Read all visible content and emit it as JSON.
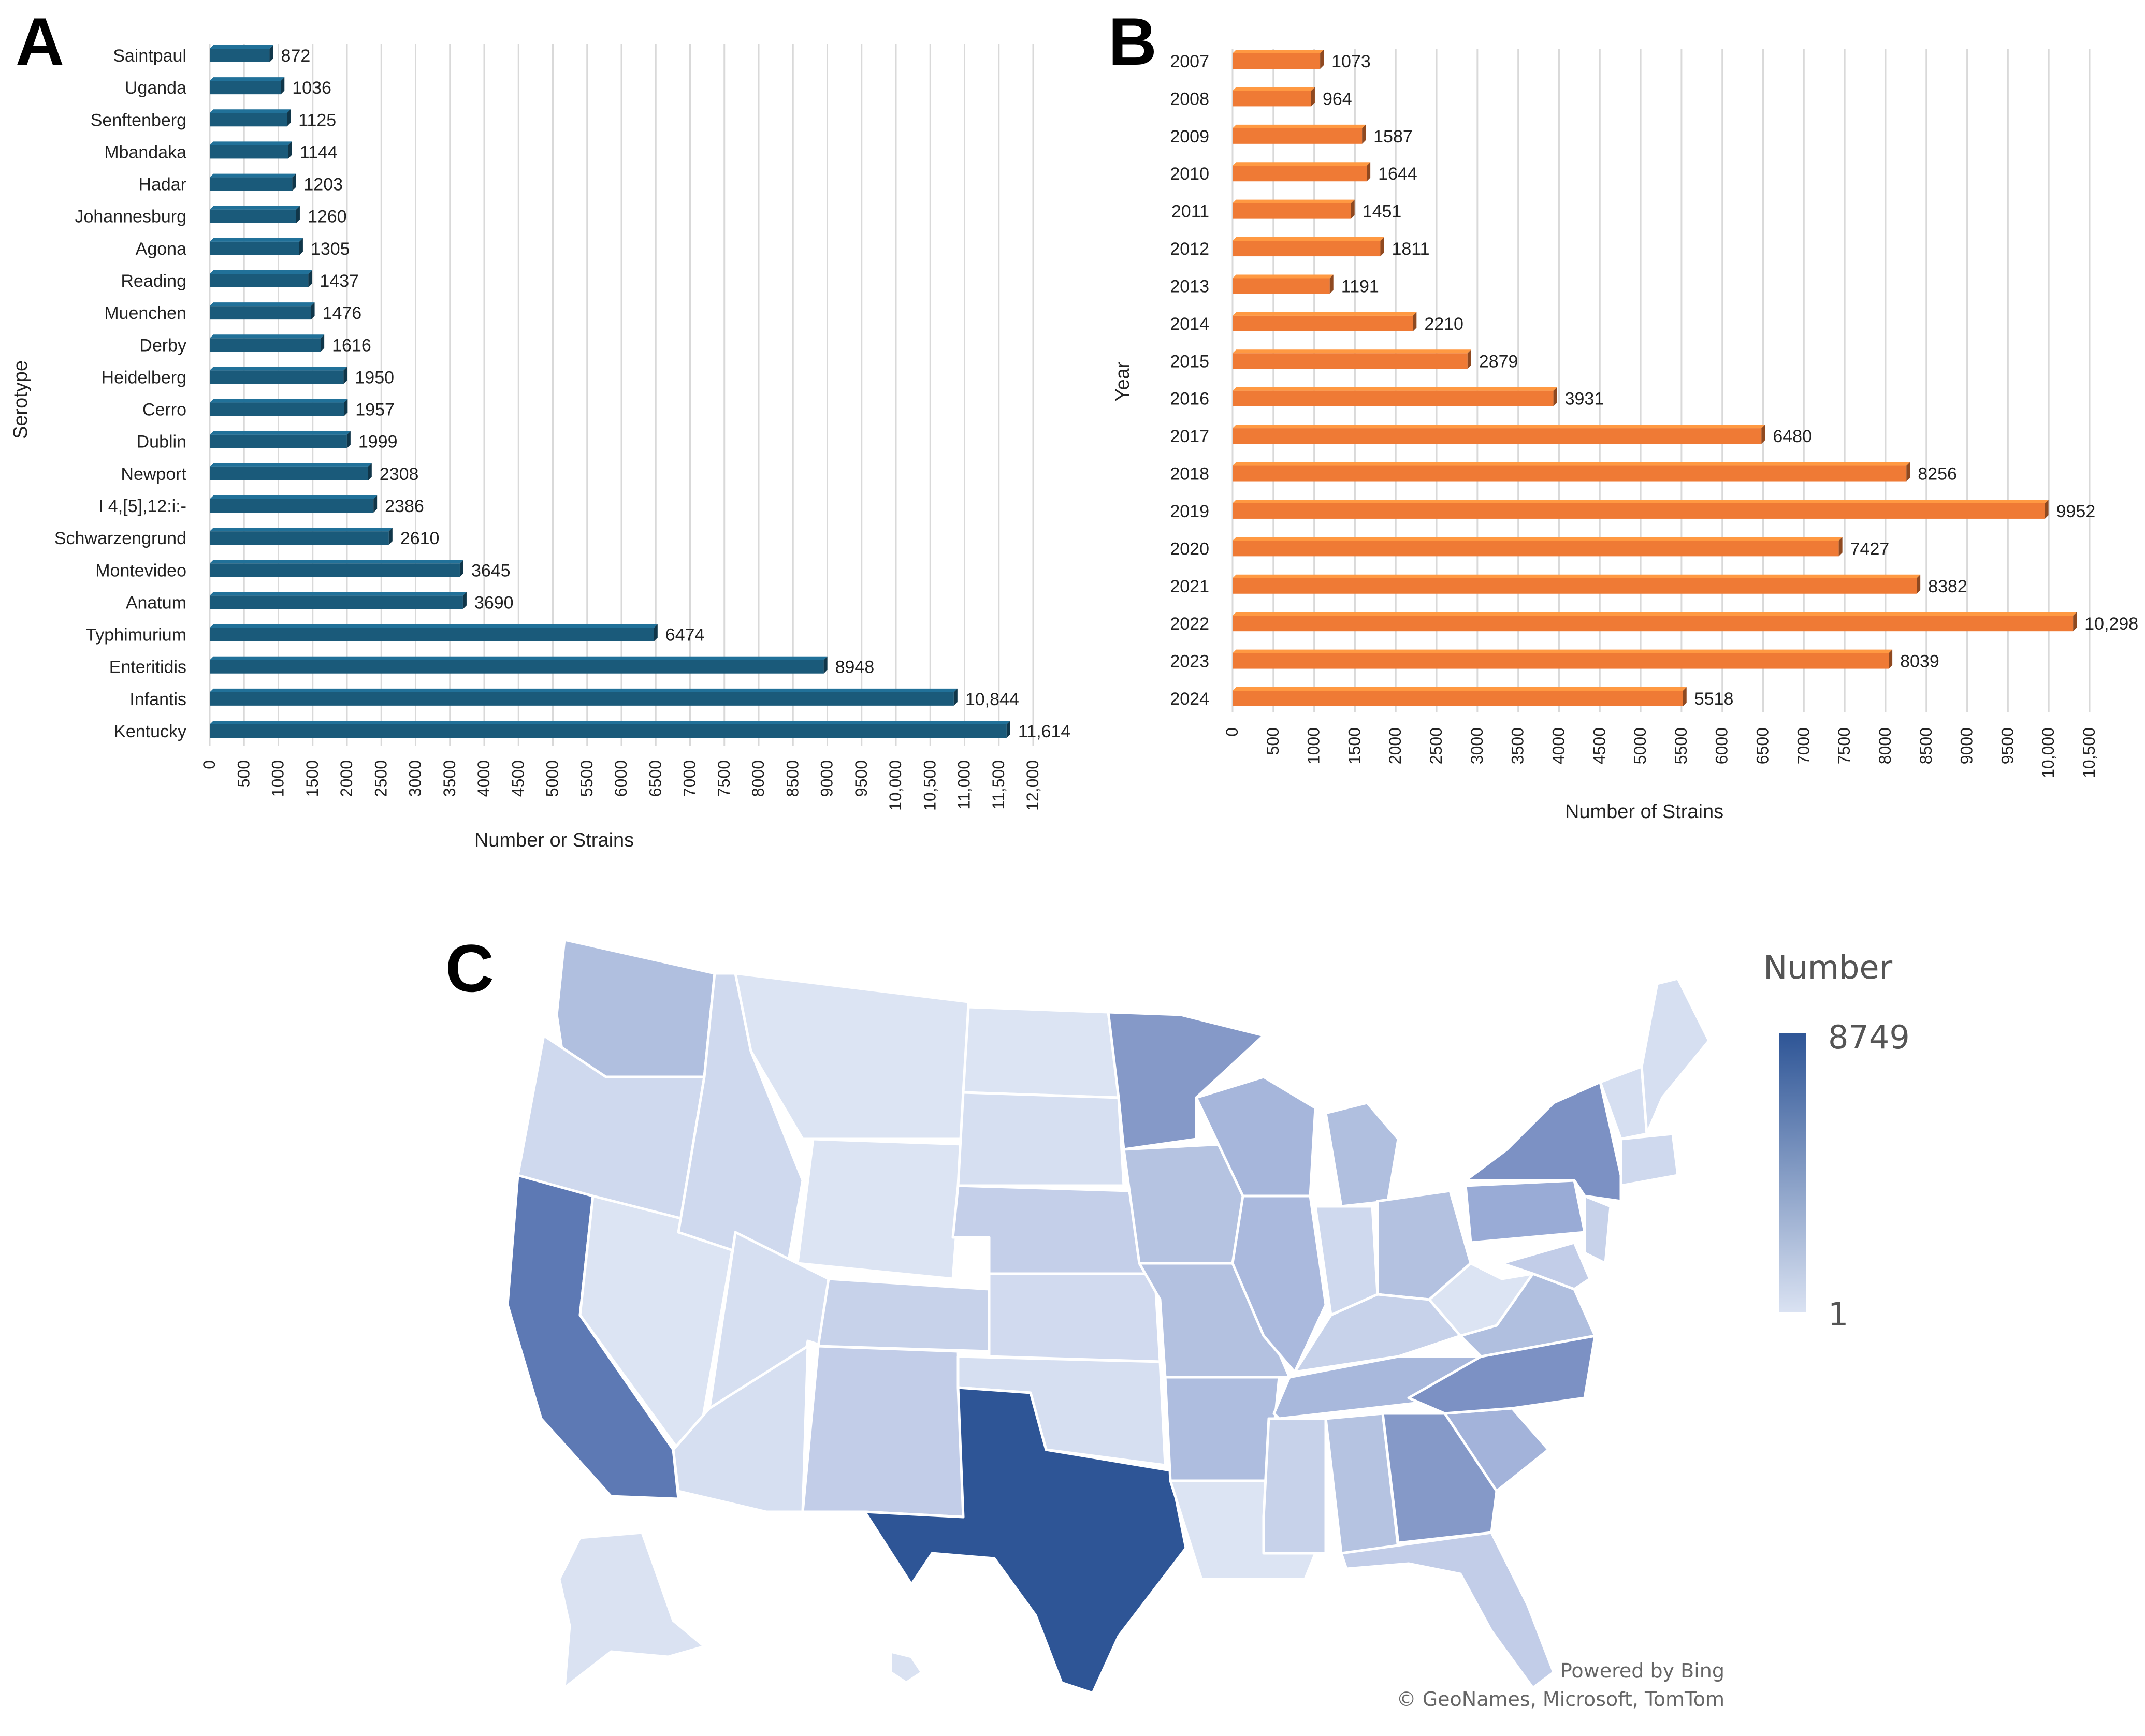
{
  "panels": {
    "A": {
      "letter": "A",
      "chart_data": {
        "type": "bar",
        "orientation": "horizontal",
        "title": "",
        "categories": [
          "Saintpaul",
          "Uganda",
          "Senftenberg",
          "Mbandaka",
          "Hadar",
          "Johannesburg",
          "Agona",
          "Reading",
          "Muenchen",
          "Derby",
          "Heidelberg",
          "Cerro",
          "Dublin",
          "Newport",
          "I 4,[5],12:i:-",
          "Schwarzengrund",
          "Montevideo",
          "Anatum",
          "Typhimurium",
          "Enteritidis",
          "Infantis",
          "Kentucky"
        ],
        "values": [
          872,
          1036,
          1125,
          1144,
          1203,
          1260,
          1305,
          1437,
          1476,
          1616,
          1950,
          1957,
          1999,
          2308,
          2386,
          2610,
          3645,
          3690,
          6474,
          8948,
          10844,
          11614
        ],
        "value_labels": [
          "872",
          "1036",
          "1125",
          "1144",
          "1203",
          "1260",
          "1305",
          "1437",
          "1476",
          "1616",
          "1950",
          "1957",
          "1999",
          "2308",
          "2386",
          "2610",
          "3645",
          "3690",
          "6474",
          "8948",
          "10,844",
          "11,614"
        ],
        "xlabel": "Number or Strains",
        "ylabel": "Serotype",
        "xlim": [
          0,
          12000
        ],
        "xticks": [
          0,
          500,
          1000,
          1500,
          2000,
          2500,
          3000,
          3500,
          4000,
          4500,
          5000,
          5500,
          6000,
          6500,
          7000,
          7500,
          8000,
          8500,
          9000,
          9500,
          10000,
          10500,
          11000,
          11500,
          12000
        ],
        "xtick_labels": [
          "0",
          "500",
          "1000",
          "1500",
          "2000",
          "2500",
          "3000",
          "3500",
          "4000",
          "4500",
          "5000",
          "5500",
          "6000",
          "6500",
          "7000",
          "7500",
          "8000",
          "8500",
          "9000",
          "9500",
          "10,000",
          "10,500",
          "11,000",
          "11,500",
          "12,000"
        ],
        "grid": true,
        "color": "#1a5a7a"
      }
    },
    "B": {
      "letter": "B",
      "chart_data": {
        "type": "bar",
        "orientation": "horizontal",
        "title": "",
        "categories": [
          "2007",
          "2008",
          "2009",
          "2010",
          "2011",
          "2012",
          "2013",
          "2014",
          "2015",
          "2016",
          "2017",
          "2018",
          "2019",
          "2020",
          "2021",
          "2022",
          "2023",
          "2024"
        ],
        "values": [
          1073,
          964,
          1587,
          1644,
          1451,
          1811,
          1191,
          2210,
          2879,
          3931,
          6480,
          8256,
          9952,
          7427,
          8382,
          10298,
          8039,
          5518
        ],
        "value_labels": [
          "1073",
          "964",
          "1587",
          "1644",
          "1451",
          "1811",
          "1191",
          "2210",
          "2879",
          "3931",
          "6480",
          "8256",
          "9952",
          "7427",
          "8382",
          "10,298",
          "8039",
          "5518"
        ],
        "xlabel": "Number of Strains",
        "ylabel": "Year",
        "xlim": [
          0,
          10500
        ],
        "xticks": [
          0,
          500,
          1000,
          1500,
          2000,
          2500,
          3000,
          3500,
          4000,
          4500,
          5000,
          5500,
          6000,
          6500,
          7000,
          7500,
          8000,
          8500,
          9000,
          9500,
          10000,
          10500
        ],
        "xtick_labels": [
          "0",
          "500",
          "1000",
          "1500",
          "2000",
          "2500",
          "3000",
          "3500",
          "4000",
          "4500",
          "5000",
          "5500",
          "6000",
          "6500",
          "7000",
          "7500",
          "8000",
          "8500",
          "9000",
          "9500",
          "10,000",
          "10,500"
        ],
        "grid": true,
        "color": "#ef7a35"
      }
    },
    "C": {
      "letter": "C",
      "map": {
        "type": "choropleth",
        "region": "United States",
        "legend_title": "Number",
        "legend_max": "8749",
        "legend_min": "1",
        "color_low": "#dae2f2",
        "color_high": "#2e5596",
        "credit_line1": "Powered by Bing",
        "credit_line2": "© GeoNames, Microsoft, TomTom"
      }
    }
  }
}
